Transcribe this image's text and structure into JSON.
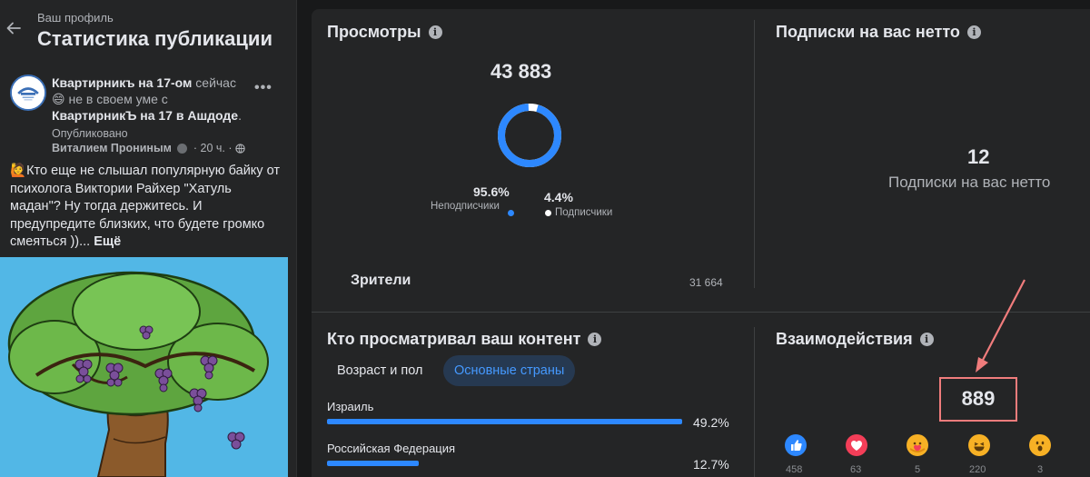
{
  "header": {
    "breadcrumb": "Ваш профиль",
    "title": "Статистика публикации"
  },
  "post": {
    "author_name": "Квартирникъ на 17-ом",
    "author_text1": " сейчас",
    "feeling": " не в своем уме с",
    "location_name": "КвартирникЪ на 17 в Ашдоде",
    "published_label": "Опубликовано",
    "published_by": "Виталием Прониным",
    "time": "20 ч.",
    "text": "Кто еще не слышал популярную байку от психолога Виктории Райхер \"Хатуль мадан\"? Ну тогда держитесь. И предупредите близких, что будете громко смеяться ))...",
    "more_label": "Ещё",
    "dot_sep": "·",
    "period": "."
  },
  "views": {
    "title": "Просмотры",
    "total": "43 883",
    "nonfollowers_pct": "95.6%",
    "followers_pct": "4.4%",
    "nonfollowers_label": "Неподписчик­и",
    "followers_label": "Подписчики",
    "nonfollowers_fraction": 0.956,
    "viewers_label": "Зрители",
    "viewers_value": "31 664"
  },
  "net_follows": {
    "title": "Подписки на вас нетто",
    "value": "12",
    "label": "Подписки на вас нетто"
  },
  "audience": {
    "title": "Кто просматривал ваш контент",
    "tabs": [
      {
        "label": "Возраст и пол"
      },
      {
        "label": "Основные страны"
      }
    ],
    "countries": [
      {
        "name": "Израиль",
        "pct": "49.2%",
        "value": 49.2
      },
      {
        "name": "Российская Федерация",
        "pct": "12.7%",
        "value": 12.7
      }
    ]
  },
  "interactions": {
    "title": "Взаимодействия",
    "total": "889",
    "reactions": [
      {
        "icon": "like-icon",
        "color": "#2d88ff",
        "count": "458"
      },
      {
        "icon": "love-icon",
        "color": "#f33e58",
        "count": "63"
      },
      {
        "icon": "care-icon",
        "color": "#f7b125",
        "count": "5"
      },
      {
        "icon": "haha-icon",
        "color": "#f7b125",
        "count": "220"
      },
      {
        "icon": "wow-icon",
        "color": "#f7b125",
        "count": "3"
      }
    ]
  }
}
